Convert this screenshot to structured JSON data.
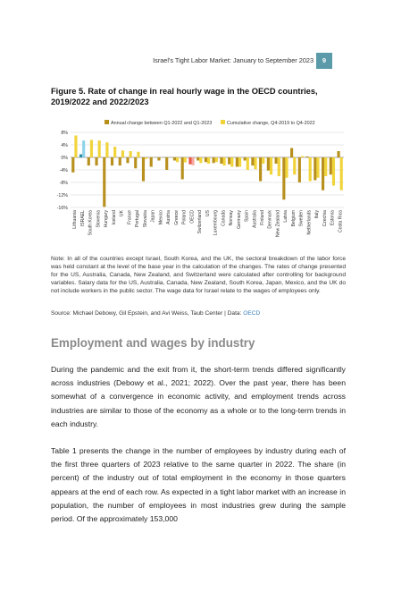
{
  "header": {
    "running_title": "Israel's Tight Labor Market: January to September 2023",
    "page_number": "9",
    "accent_color": "#5b9aa8"
  },
  "figure": {
    "title": "Figure 5. Rate of change in real hourly wage in the OECD countries, 2019/2022 and 2022/2023",
    "note": "Note: In all of the countries except Israel, South Korea, and the UK, the sectoral breakdown of the labor force was held constant at the level of the base year in the calculation of the changes. The rates of change presented for the US, Australia, Canada, New Zealand, and Switzerland were calculated after controlling for background variables. Salary data for the US, Australia, Canada, New Zealand, South Korea, Japan, Mexico, and the UK do not include workers in the public sector. The wage data for Israel relate to the wages of employees only.",
    "source_prefix": "Source: Michael Debowy, Gil Epstein, and Avi Weiss, Taub Center | Data: ",
    "source_link": "OECD"
  },
  "chart_data": {
    "type": "bar",
    "title": "",
    "xlabel": "",
    "ylabel": "",
    "ylim": [
      -16,
      8
    ],
    "yticks": [
      "8%",
      "4%",
      "0%",
      "-4%",
      "-8%",
      "-12%",
      "-16%"
    ],
    "ytick_values": [
      8,
      4,
      0,
      -4,
      -8,
      -12,
      -16
    ],
    "grid": true,
    "legend_position": "top",
    "categories": [
      "Lithuania",
      "ISRAEL",
      "South Korea",
      "Slovenia",
      "Hungary",
      "Iceland",
      "UK",
      "France",
      "Portugal",
      "Slovakia",
      "Japan",
      "Mexico",
      "Austria",
      "Greece",
      "Poland",
      "OECD",
      "Switzerland",
      "US",
      "Luxembourg",
      "Canada",
      "Norway",
      "Germany",
      "Spain",
      "Australia",
      "Finland",
      "Denmark",
      "New Zealand",
      "Latvia",
      "Belgium",
      "Sweden",
      "Netherlands",
      "Italy",
      "Czechia",
      "Estonia",
      "Costa Rica"
    ],
    "series": [
      {
        "name": "Annual change between Q1-2022 and Q1-2023",
        "color": "#b8901e",
        "values": [
          -4.8,
          1.0,
          -2.6,
          -2.6,
          -15.8,
          -2.6,
          -2.6,
          -1.8,
          -3.5,
          -7.6,
          -3.0,
          -1.0,
          -4.0,
          -1.0,
          -7.0,
          -2.2,
          -1.0,
          -1.5,
          -1.8,
          -2.0,
          -2.2,
          -3.0,
          -1.0,
          -2.6,
          -7.6,
          -4.2,
          -2.0,
          -13.5,
          3.0,
          -8.0,
          0.3,
          -7.3,
          -10.5,
          -5.5,
          2.0
        ]
      },
      {
        "name": "Cumulative change, Q4-2019 to Q4-2022",
        "color": "#f0d43a",
        "values": [
          7.0,
          5.4,
          5.6,
          5.4,
          4.8,
          3.4,
          2.2,
          2.0,
          1.8,
          -0.5,
          0.0,
          0.0,
          0.0,
          -1.5,
          -1.6,
          -2.5,
          -1.8,
          -2.0,
          -1.5,
          -2.6,
          -3.0,
          -3.0,
          -4.0,
          -3.8,
          -2.0,
          -5.5,
          -6.0,
          -6.5,
          -5.5,
          0.4,
          -7.6,
          -6.5,
          -6.0,
          -9.0,
          -10.5
        ]
      }
    ],
    "highlights": [
      {
        "category": "ISRAEL",
        "annual_color": "#2e8fa3",
        "cumulative_color": "#8ed3ea"
      },
      {
        "category": "OECD",
        "annual_color": "#e8574a",
        "cumulative_color": "#f4a9a0"
      }
    ]
  },
  "section": {
    "heading": "Employment and wages by industry",
    "para1": "During the pandemic and the exit from it, the short-term trends differed significantly across industries (Debowy et al., 2021; 2022). Over the past year, there has been somewhat of a convergence in economic activity, and employment trends across industries are similar to those of the economy as a whole or to the long-term trends in each industry.",
    "para2": "Table 1 presents the change in the number of employees by industry during each of the first three quarters of 2023 relative to the same quarter in 2022. The share (in percent) of the industry out of total employment in the economy in those quarters appears at the end of each row. As expected in a tight labor market with an increase in population, the number of employees in most industries grew during the sample period. Of the approximately 153,000"
  }
}
